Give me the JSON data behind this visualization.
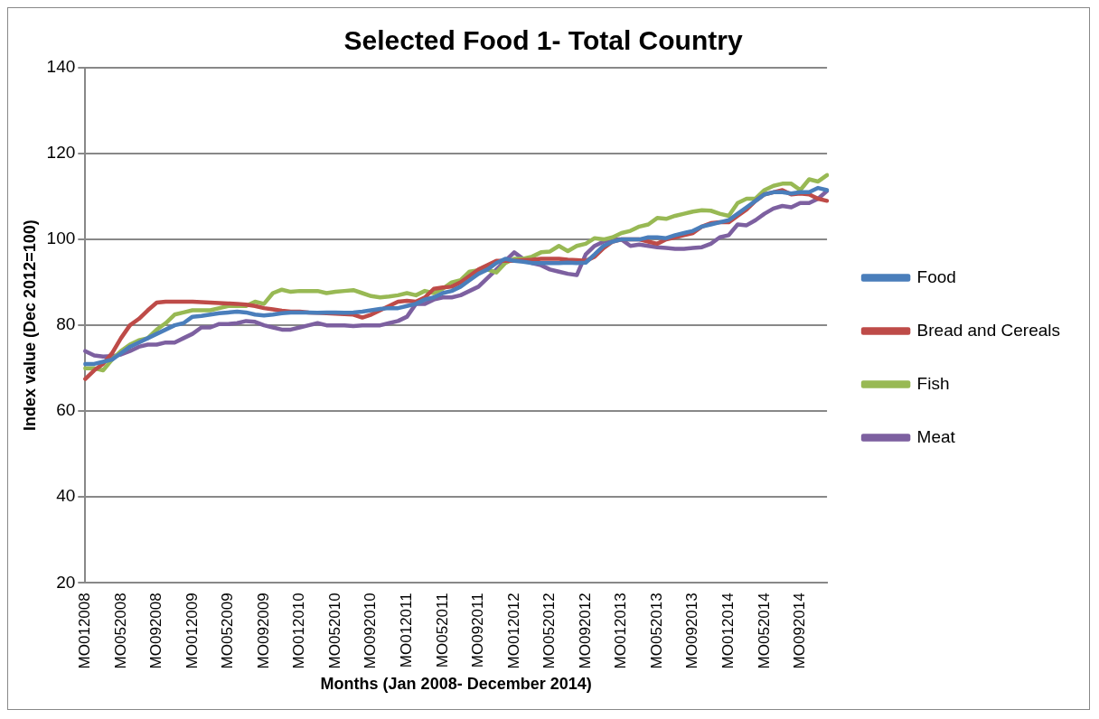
{
  "chart_data": {
    "type": "line",
    "title": "Selected Food 1- Total Country",
    "xlabel": "Months (Jan 2008- December 2014)",
    "ylabel": "Index value (Dec 2012=100)",
    "categories": [
      "MO012008",
      null,
      null,
      null,
      "MO052008",
      null,
      null,
      null,
      "MO092008",
      null,
      null,
      null,
      "MO012009",
      null,
      null,
      null,
      "MO052009",
      null,
      null,
      null,
      "MO092009",
      null,
      null,
      null,
      "MO012010",
      null,
      null,
      null,
      "MO052010",
      null,
      null,
      null,
      "MO092010",
      null,
      null,
      null,
      "MO012011",
      null,
      null,
      null,
      "MO052011",
      null,
      null,
      null,
      "MO092011",
      null,
      null,
      null,
      "MO012012",
      null,
      null,
      null,
      "MO052012",
      null,
      null,
      null,
      "MO092012",
      null,
      null,
      null,
      "MO012013",
      null,
      null,
      null,
      "MO052013",
      null,
      null,
      null,
      "MO092013",
      null,
      null,
      null,
      "MO012014",
      null,
      null,
      null,
      "MO052014",
      null,
      null,
      null,
      "MO092014",
      null,
      null,
      null
    ],
    "series": [
      {
        "name": "Food",
        "color": "#4a7ebb",
        "values": [
          71,
          71,
          71.5,
          72,
          73.5,
          75,
          76,
          77,
          78,
          79,
          80,
          80.5,
          82,
          82.2,
          82.5,
          82.8,
          83,
          83.2,
          83,
          82.5,
          82.3,
          82.5,
          82.8,
          83,
          83,
          83,
          82.9,
          83,
          83,
          82.9,
          83,
          83.2,
          83.5,
          83.8,
          84,
          84,
          84.5,
          85,
          86,
          86.5,
          87.5,
          88,
          89,
          90.5,
          92,
          93,
          94.5,
          95.5,
          95,
          94.8,
          94.5,
          94.5,
          94.5,
          94.5,
          94.6,
          94.5,
          94.6,
          96.5,
          98.5,
          99.5,
          100,
          100,
          100,
          100.5,
          100.5,
          100.3,
          101,
          101.5,
          102,
          103,
          103.5,
          104,
          104.5,
          106,
          107.5,
          109,
          110.5,
          111,
          111,
          110.7,
          111,
          111,
          112,
          111.5
        ]
      },
      {
        "name": "Bread and Cereals",
        "color": "#be4b48",
        "values": [
          67.5,
          69.5,
          71,
          73.5,
          77,
          80,
          81.5,
          83.5,
          85.3,
          85.5,
          85.5,
          85.5,
          85.5,
          85.4,
          85.3,
          85.2,
          85.1,
          85,
          84.8,
          84.5,
          84,
          83.7,
          83.4,
          83.2,
          83.2,
          83,
          82.9,
          82.8,
          82.7,
          82.6,
          82.5,
          81.8,
          82.5,
          83.5,
          84.5,
          85.5,
          85.7,
          85.5,
          86.5,
          88.5,
          88.8,
          89,
          90,
          91.5,
          93,
          94,
          95,
          95,
          95,
          95.2,
          95.3,
          95.5,
          95.5,
          95.5,
          95.3,
          95.2,
          95,
          96,
          98,
          99.5,
          100,
          100,
          100,
          99.5,
          99,
          100,
          100.5,
          101,
          101.5,
          103,
          103.8,
          104,
          104,
          105.5,
          107,
          109,
          110.5,
          111,
          111.5,
          110.5,
          110.7,
          110.5,
          109.5,
          109
        ]
      },
      {
        "name": "Fish",
        "color": "#98b954",
        "values": [
          70,
          70,
          69.5,
          72,
          74,
          75.5,
          76.5,
          77,
          79,
          80.5,
          82.5,
          83,
          83.5,
          83.5,
          83.5,
          84,
          84.5,
          84.5,
          84.5,
          85.5,
          85,
          87.5,
          88.3,
          87.8,
          88,
          88,
          88,
          87.5,
          87.8,
          88,
          88.2,
          87.5,
          86.8,
          86.5,
          86.7,
          87,
          87.5,
          87,
          88,
          87.5,
          88.5,
          90,
          90.5,
          92.5,
          92.8,
          93,
          92.3,
          94.5,
          95.5,
          95.5,
          96,
          97,
          97.2,
          98.5,
          97.3,
          98.5,
          99,
          100.3,
          100,
          100.5,
          101.5,
          102,
          103,
          103.5,
          105,
          104.8,
          105.5,
          106,
          106.5,
          106.8,
          106.7,
          106,
          105.5,
          108.5,
          109.5,
          109.5,
          111.5,
          112.5,
          113,
          113,
          111.5,
          114,
          113.5,
          115
        ]
      },
      {
        "name": "Meat",
        "color": "#7d60a0",
        "values": [
          74,
          73,
          72.7,
          72.8,
          73.2,
          74,
          75,
          75.5,
          75.5,
          76,
          76,
          77,
          78,
          79.5,
          79.5,
          80.3,
          80.3,
          80.5,
          81,
          80.8,
          80,
          79.5,
          79,
          79,
          79.5,
          80,
          80.5,
          80,
          80,
          80,
          79.8,
          80,
          80,
          80,
          80.5,
          81,
          82,
          85,
          85,
          86,
          86.5,
          86.5,
          87,
          88,
          89,
          91,
          93,
          95,
          97,
          95.5,
          94.5,
          94,
          93,
          92.5,
          92,
          91.7,
          96.5,
          98.5,
          99.5,
          100,
          100,
          98.5,
          98.8,
          98.5,
          98.2,
          98,
          97.8,
          97.8,
          98,
          98.2,
          99,
          100.5,
          101,
          103.5,
          103.3,
          104.5,
          106,
          107.2,
          107.8,
          107.5,
          108.5,
          108.5,
          109.5,
          111.3
        ]
      }
    ],
    "ylim": [
      20,
      140
    ],
    "yticks": [
      20,
      40,
      60,
      80,
      100,
      120,
      140
    ],
    "grid": "y",
    "legend": "right",
    "marker": "none",
    "line_style": "solid"
  }
}
